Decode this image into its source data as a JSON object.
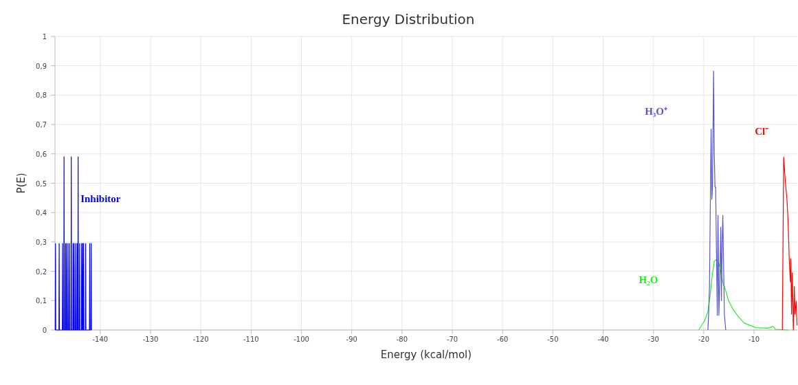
{
  "chart_data": {
    "type": "line",
    "title": "Energy Distribution",
    "xlabel": "Energy (kcal/mol)",
    "ylabel": "P(E)",
    "xlim": [
      -149,
      -1.4
    ],
    "xticks": [
      -140,
      -130,
      -120,
      -110,
      -100,
      -90,
      -80,
      -70,
      -60,
      -50,
      -40,
      -30,
      -20,
      -10
    ],
    "ylim": [
      0,
      1
    ],
    "yticks": [
      0,
      {
        "value": 0.1,
        "label": "0,1"
      },
      {
        "value": 0.2,
        "label": "0,2"
      },
      {
        "value": 0.3,
        "label": "0,3"
      },
      {
        "value": 0.4,
        "label": "0,4"
      },
      {
        "value": 0.5,
        "label": "0,5"
      },
      {
        "value": 0.6,
        "label": "0,6"
      },
      {
        "value": 0.7,
        "label": "0,7"
      },
      {
        "value": 0.8,
        "label": "0,8"
      },
      {
        "value": 0.9,
        "label": "0,9"
      },
      1
    ],
    "grid": true,
    "marker": "none",
    "line_style": "solid",
    "series": [
      {
        "name": "Inhibitor",
        "color": "#0000ff",
        "x": [
          -148.95,
          -148.9,
          -148.85,
          -148.22,
          -148.17,
          -148.12,
          -147.54,
          -147.49,
          -147.44,
          -147.25,
          -147.2,
          -147.15,
          -146.95,
          -146.9,
          -146.85,
          -146.75,
          -146.7,
          -146.65,
          -146.45,
          -146.4,
          -146.35,
          -146.15,
          -146.1,
          -146.05,
          -145.81,
          -145.76,
          -145.71,
          -145.45,
          -145.4,
          -145.35,
          -145.25,
          -145.2,
          -145.15,
          -144.95,
          -144.9,
          -144.85,
          -144.65,
          -144.6,
          -144.55,
          -144.45,
          -144.4,
          -144.35,
          -144.15,
          -144.1,
          -144.05,
          -143.75,
          -143.7,
          -143.65,
          -143.55,
          -143.5,
          -143.45,
          -143.35,
          -143.3,
          -143.25,
          -142.95,
          -142.9,
          -142.85,
          -142.15,
          -142.1,
          -142.05,
          -141.85,
          -141.8,
          -141.75
        ],
        "values": [
          0,
          0.295,
          0,
          0,
          0.295,
          0,
          0,
          0.295,
          0,
          0,
          0.59,
          0,
          0,
          0.295,
          0,
          0,
          0.295,
          0,
          0,
          0.295,
          0,
          0,
          0.295,
          0,
          0,
          0.59,
          0,
          0,
          0.295,
          0,
          0,
          0.295,
          0,
          0,
          0.295,
          0,
          0,
          0.295,
          0,
          0,
          0.59,
          0,
          0,
          0.295,
          0,
          0,
          0.295,
          0,
          0,
          0.295,
          0,
          0,
          0.295,
          0,
          0,
          0.295,
          0,
          0,
          0.295,
          0,
          0,
          0.295,
          0
        ]
      },
      {
        "name": "H₂O",
        "color": "#22ee22",
        "x": [
          -21,
          -19.86,
          -19.18,
          -18.73,
          -18.36,
          -17.91,
          -17.58,
          -17.13,
          -16.76,
          -16.21,
          -15.63,
          -15.08,
          -14.17,
          -13.03,
          -11.9,
          -9.61,
          -7.33,
          -6.2,
          -5.75,
          -3.2
        ],
        "values": [
          0,
          0.031,
          0.063,
          0.117,
          0.18,
          0.234,
          0.239,
          0.234,
          0.211,
          0.164,
          0.133,
          0.1,
          0.07,
          0.043,
          0.023,
          0.008,
          0.006,
          0.012,
          0.002,
          0
        ]
      },
      {
        "name": "H₃O⁺",
        "color": "#5555d5",
        "x": [
          -19.18,
          -19.04,
          -18.87,
          -18.54,
          -18.4,
          -18.26,
          -18.05,
          -17.91,
          -17.77,
          -17.64,
          -17.5,
          -17.31,
          -17.17,
          -16.99,
          -16.82,
          -16.62,
          -16.49,
          -16.35,
          -16.21,
          -16.08,
          -15.9,
          -15.63
        ],
        "values": [
          0,
          0.05,
          0.145,
          0.684,
          0.445,
          0.49,
          0.882,
          0.6,
          0.487,
          0.487,
          0.297,
          0.05,
          0.39,
          0.05,
          0.17,
          0.35,
          0.1,
          0.29,
          0.39,
          0.24,
          0.054,
          0
        ]
      },
      {
        "name": "Cl⁻",
        "color": "#ff0000",
        "x": [
          -4.38,
          -4.11,
          -3.92,
          -3.7,
          -3.46,
          -3.23,
          -3.01,
          -2.78,
          -2.69,
          -2.55,
          -2.41,
          -2.19,
          -2,
          -1.86,
          -1.64,
          -1.45
        ],
        "values": [
          0,
          0.589,
          0.539,
          0.49,
          0.445,
          0.367,
          0.242,
          0.164,
          0.242,
          0.054,
          0.195,
          0,
          0.148,
          0.054,
          0.098,
          0.016
        ]
      }
    ]
  }
}
